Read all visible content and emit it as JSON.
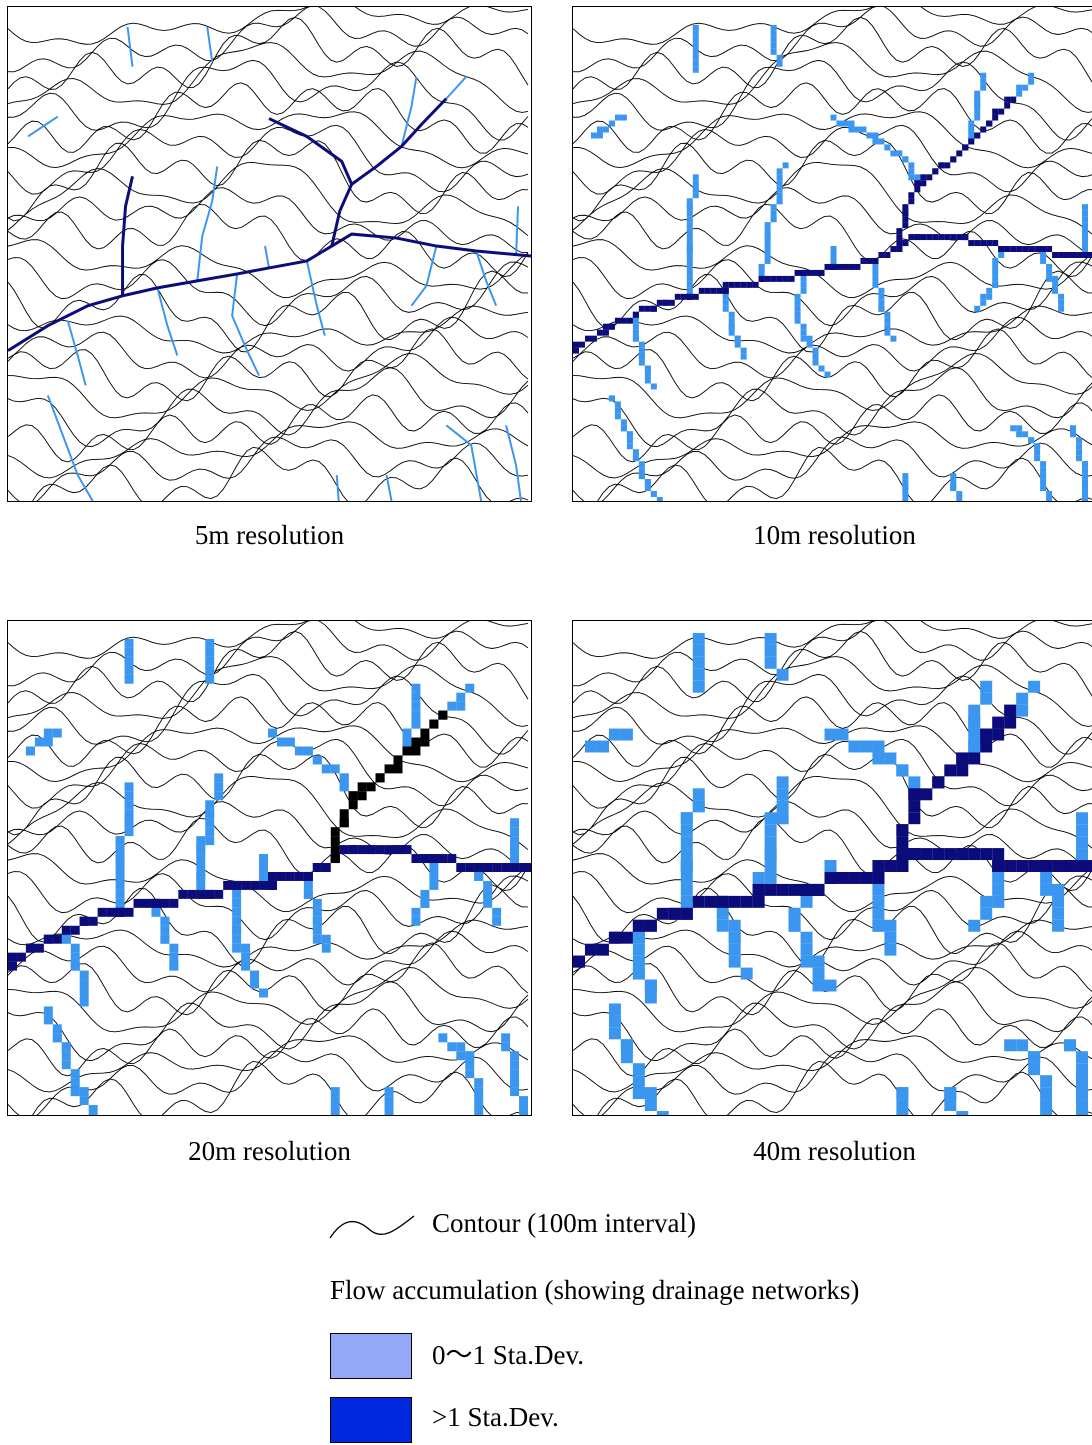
{
  "panels": [
    {
      "key": "p5",
      "caption": "5m resolution"
    },
    {
      "key": "p10",
      "caption": "10m resolution"
    },
    {
      "key": "p20",
      "caption": "20m resolution"
    },
    {
      "key": "p40",
      "caption": "40m resolution"
    }
  ],
  "legend": {
    "contour_label": "Contour (100m interval)",
    "flow_title": "Flow accumulation (showing drainage networks)",
    "classes": [
      {
        "label": "0～1 Sta.Dev.",
        "color": "#94a8f8"
      },
      {
        "label": ">1  Sta.Dev.",
        "color": "#0029e0"
      }
    ]
  },
  "colors": {
    "contour": "#000000",
    "stream_low": "#3b96f0",
    "stream_high": "#0b0b7a",
    "stream_max": "#000000"
  }
}
